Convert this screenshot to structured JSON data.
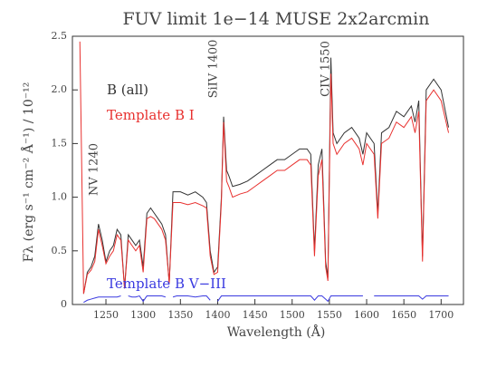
{
  "chart_data": {
    "type": "line",
    "title": "FUV limit 1e−14 MUSE 2x2arcmin",
    "x_label": "Wavelength (Å)",
    "y_label": "Fλ (erg s⁻¹ cm⁻² Å⁻¹) / 10⁻¹²",
    "annotations": [
      "NV 1240",
      "SiIV 1400",
      "CIV 1550"
    ],
    "x": [
      1215,
      1220,
      1225,
      1230,
      1235,
      1240,
      1245,
      1250,
      1255,
      1260,
      1265,
      1270,
      1275,
      1280,
      1285,
      1290,
      1295,
      1300,
      1305,
      1310,
      1315,
      1320,
      1325,
      1330,
      1335,
      1340,
      1345,
      1350,
      1360,
      1370,
      1380,
      1385,
      1390,
      1395,
      1400,
      1405,
      1408,
      1412,
      1415,
      1420,
      1430,
      1440,
      1450,
      1460,
      1470,
      1480,
      1490,
      1500,
      1510,
      1520,
      1525,
      1530,
      1535,
      1540,
      1545,
      1548,
      1552,
      1555,
      1560,
      1570,
      1580,
      1590,
      1595,
      1600,
      1610,
      1615,
      1620,
      1630,
      1640,
      1650,
      1660,
      1665,
      1670,
      1675,
      1680,
      1690,
      1700,
      1710
    ],
    "series": [
      {
        "name": "B (all)",
        "color": "#333333",
        "values": [
          null,
          0.1,
          0.3,
          0.35,
          0.45,
          0.75,
          0.6,
          0.4,
          0.5,
          0.55,
          0.7,
          0.65,
          0.15,
          0.65,
          0.6,
          0.55,
          0.6,
          0.35,
          0.85,
          0.9,
          0.85,
          0.8,
          0.75,
          0.65,
          0.2,
          1.05,
          1.05,
          1.05,
          1.02,
          1.05,
          1.0,
          0.95,
          0.5,
          0.3,
          0.35,
          1.0,
          1.75,
          1.25,
          1.2,
          1.1,
          1.12,
          1.15,
          1.2,
          1.25,
          1.3,
          1.35,
          1.35,
          1.4,
          1.45,
          1.45,
          1.4,
          0.5,
          1.3,
          1.45,
          0.4,
          0.25,
          2.3,
          1.6,
          1.5,
          1.6,
          1.65,
          1.55,
          1.4,
          1.6,
          1.5,
          0.85,
          1.6,
          1.65,
          1.8,
          1.75,
          1.85,
          1.7,
          1.9,
          0.45,
          2.0,
          2.1,
          2.0,
          1.65
        ]
      },
      {
        "name": "Template B I",
        "color": "#e8312f",
        "values": [
          2.45,
          0.1,
          0.28,
          0.32,
          0.4,
          0.7,
          0.55,
          0.38,
          0.45,
          0.5,
          0.65,
          0.6,
          0.15,
          0.6,
          0.55,
          0.5,
          0.55,
          0.3,
          0.8,
          0.82,
          0.8,
          0.75,
          0.7,
          0.6,
          0.2,
          0.95,
          0.95,
          0.95,
          0.93,
          0.95,
          0.92,
          0.9,
          0.45,
          0.28,
          0.3,
          0.95,
          1.7,
          1.15,
          1.1,
          1.0,
          1.03,
          1.05,
          1.1,
          1.15,
          1.2,
          1.25,
          1.25,
          1.3,
          1.35,
          1.35,
          1.3,
          0.45,
          1.2,
          1.35,
          0.35,
          0.22,
          2.15,
          1.5,
          1.4,
          1.5,
          1.55,
          1.45,
          1.3,
          1.5,
          1.4,
          0.8,
          1.5,
          1.55,
          1.7,
          1.65,
          1.75,
          1.6,
          1.8,
          0.4,
          1.9,
          2.0,
          1.9,
          1.6
        ]
      },
      {
        "name": "Template B V−III",
        "color": "#3a3ae0",
        "values": [
          null,
          0.02,
          0.04,
          0.05,
          0.06,
          0.07,
          0.07,
          0.07,
          0.07,
          0.07,
          0.07,
          0.08,
          null,
          0.08,
          0.07,
          0.07,
          0.08,
          0.03,
          0.08,
          0.08,
          0.08,
          0.08,
          0.08,
          0.07,
          null,
          0.07,
          0.08,
          0.08,
          0.08,
          0.07,
          0.08,
          0.08,
          0.04,
          null,
          0.03,
          0.08,
          0.08,
          0.08,
          0.08,
          0.08,
          0.08,
          0.08,
          0.08,
          0.08,
          0.08,
          0.08,
          0.08,
          0.08,
          0.08,
          0.08,
          0.08,
          0.04,
          0.08,
          0.08,
          0.05,
          0.03,
          0.08,
          0.08,
          0.08,
          0.08,
          0.08,
          0.08,
          0.08,
          null,
          0.08,
          0.08,
          0.08,
          0.08,
          0.08,
          0.08,
          0.08,
          0.08,
          0.08,
          0.05,
          0.08,
          0.08,
          0.08,
          0.08
        ]
      }
    ],
    "xlim": [
      1205,
      1730
    ],
    "ylim": [
      0,
      2.5
    ],
    "xticks": [
      1250,
      1300,
      1350,
      1400,
      1450,
      1500,
      1550,
      1600,
      1650,
      1700
    ],
    "yticks": [
      0,
      0.5,
      {
        "value": 1,
        "label": "1.0"
      },
      1.5,
      {
        "value": 2,
        "label": "2.0"
      },
      2.5
    ]
  }
}
